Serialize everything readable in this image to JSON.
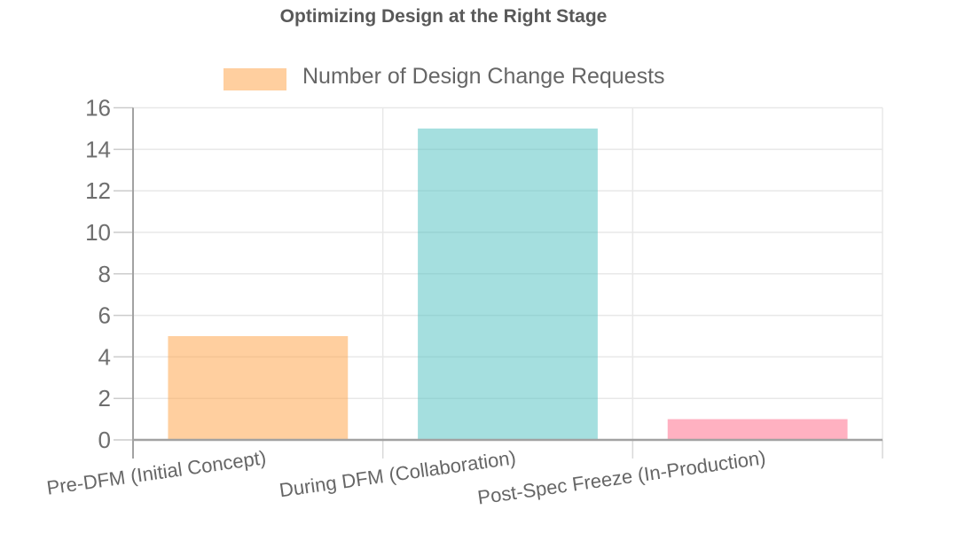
{
  "title": "Optimizing Design at the Right Stage",
  "legend": {
    "label": "Number of Design Change Requests",
    "swatch_color": "rgba(255,159,64,0.5)"
  },
  "chart_data": {
    "type": "bar",
    "title": "Optimizing Design at the Right Stage",
    "categories": [
      "Pre-DFM (Initial Concept)",
      "During DFM (Collaboration)",
      "Post-Spec Freeze (In-Production)"
    ],
    "series": [
      {
        "name": "Number of Design Change Requests",
        "values": [
          5,
          15,
          1
        ]
      }
    ],
    "bar_colors": [
      "rgba(255,159,64,0.5)",
      "rgba(75,192,192,0.5)",
      "rgba(255,99,132,0.5)"
    ],
    "xlabel": "",
    "ylabel": "",
    "ylim": [
      0,
      16
    ],
    "yticks": [
      0,
      2,
      4,
      6,
      8,
      10,
      12,
      14,
      16
    ],
    "grid": true,
    "legend_position": "top",
    "x_label_rotation_deg": -8
  },
  "colors": {
    "gridline": "#e8e8e8",
    "axis_line": "#a2a2a2",
    "tick_mark": "#cccccc",
    "below_axis_tick": "#d9d9d9",
    "title_text": "#595959",
    "tick_label_text": "#6e6e6e",
    "category_label_text": "#666666"
  }
}
